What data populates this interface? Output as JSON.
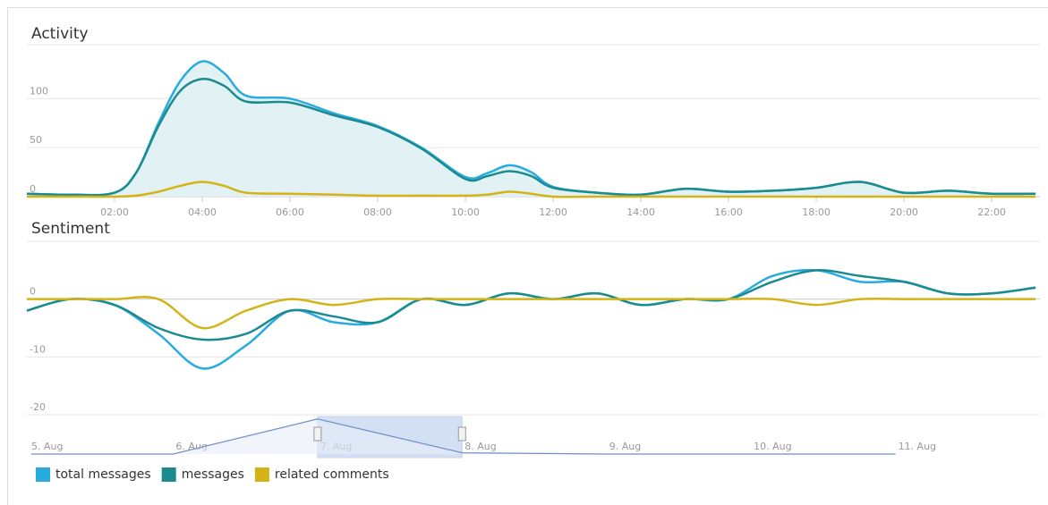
{
  "chart_data": [
    {
      "type": "area-line",
      "title": "Activity",
      "x": [
        0,
        1,
        2,
        2.5,
        3,
        3.5,
        4,
        4.5,
        5,
        6,
        7,
        8,
        9,
        10,
        10.5,
        11,
        11.5,
        12,
        13,
        14,
        15,
        16,
        17,
        18,
        19,
        20,
        21,
        22,
        23
      ],
      "xlim": [
        0,
        23.1
      ],
      "xticks": [
        {
          "value": 2,
          "label": "02:00"
        },
        {
          "value": 4,
          "label": "04:00"
        },
        {
          "value": 6,
          "label": "06:00"
        },
        {
          "value": 8,
          "label": "08:00"
        },
        {
          "value": 10,
          "label": "10:00"
        },
        {
          "value": 12,
          "label": "12:00"
        },
        {
          "value": 14,
          "label": "14:00"
        },
        {
          "value": 16,
          "label": "16:00"
        },
        {
          "value": 18,
          "label": "18:00"
        },
        {
          "value": 20,
          "label": "20:00"
        },
        {
          "value": 22,
          "label": "22:00"
        }
      ],
      "ylim": [
        0,
        155
      ],
      "yticks": [
        0,
        50,
        100
      ],
      "grid": true,
      "series": [
        {
          "name": "total messages",
          "color": "#29abe2",
          "values": [
            3,
            2,
            4,
            25,
            75,
            118,
            138,
            126,
            103,
            100,
            85,
            72,
            50,
            20,
            24,
            32,
            25,
            10,
            4,
            2,
            8,
            5,
            6,
            9,
            15,
            4,
            6,
            3,
            3
          ]
        },
        {
          "name": "messages",
          "color": "#1b8b8f",
          "values": [
            3,
            2,
            4,
            25,
            72,
            108,
            120,
            113,
            97,
            96,
            83,
            71,
            49,
            18,
            21,
            26,
            21,
            9,
            4,
            2,
            8,
            5,
            6,
            9,
            15,
            4,
            6,
            3,
            3
          ]
        },
        {
          "name": "related comments",
          "color": "#d4b316",
          "values": [
            0,
            0,
            0,
            1,
            5,
            11,
            15,
            11,
            4,
            3,
            2,
            1,
            1,
            1,
            2,
            5,
            3,
            0,
            0,
            0,
            0,
            0,
            0,
            0,
            0,
            0,
            0,
            0,
            0
          ]
        }
      ]
    },
    {
      "type": "line",
      "title": "Sentiment",
      "x": [
        0,
        1,
        2,
        3,
        4,
        5,
        6,
        7,
        8,
        9,
        10,
        11,
        12,
        13,
        14,
        15,
        16,
        17,
        18,
        19,
        20,
        21,
        22,
        23
      ],
      "xlim": [
        0,
        23.1
      ],
      "ylim": [
        -20,
        10
      ],
      "yticks": [
        -20,
        -10,
        0
      ],
      "grid": true,
      "series": [
        {
          "name": "total messages",
          "color": "#29abe2",
          "values": [
            -2,
            0,
            -1,
            -6,
            -12,
            -8,
            -2,
            -4,
            -4,
            0,
            -1,
            1,
            0,
            1,
            -1,
            0,
            0,
            4,
            5,
            3,
            3,
            1,
            1,
            2
          ]
        },
        {
          "name": "messages",
          "color": "#1b8b8f",
          "values": [
            -2,
            0,
            -1,
            -5,
            -7,
            -6,
            -2,
            -3,
            -4,
            0,
            -1,
            1,
            0,
            1,
            -1,
            0,
            0,
            3,
            5,
            4,
            3,
            1,
            1,
            2
          ]
        },
        {
          "name": "related comments",
          "color": "#d4b316",
          "values": [
            0,
            0,
            0,
            0,
            -5,
            -2,
            0,
            -1,
            0,
            0,
            0,
            0,
            0,
            0,
            0,
            0,
            0,
            0,
            -1,
            0,
            0,
            0,
            0,
            0
          ]
        }
      ]
    },
    {
      "type": "navigator",
      "categories": [
        "5. Aug",
        "6. Aug",
        "7. Aug",
        "8. Aug",
        "9. Aug",
        "10. Aug",
        "11. Aug"
      ],
      "values": [
        0,
        0,
        140,
        5,
        0,
        0,
        0
      ],
      "ylim": [
        0,
        150
      ],
      "color": "#6f8fc9",
      "selection": [
        2,
        3
      ]
    }
  ]
}
